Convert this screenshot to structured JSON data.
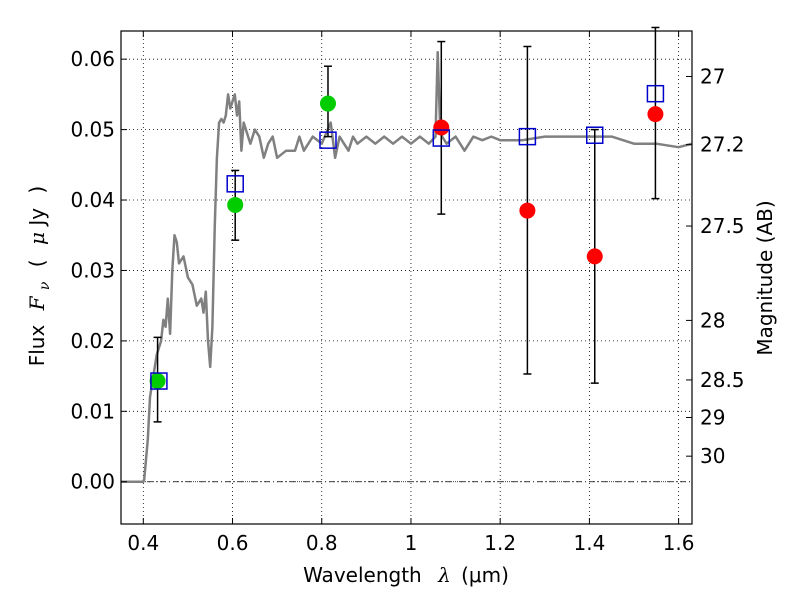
{
  "chart_data": {
    "type": "scatter",
    "xlabel": "Wavelength",
    "xlabel_symbol": "λ",
    "xlabel_unit": "(μm)",
    "ylabel": "Flux",
    "ylabel_symbol": "F",
    "ylabel_subscript": "ν",
    "ylabel_unit_open": "(",
    "ylabel_unit_mu": "μ",
    "ylabel_unit": "Jy",
    "ylabel_unit_close": ")",
    "y2label": "Magnitude (AB)",
    "xlim": [
      0.35,
      1.63
    ],
    "ylim": [
      -0.006,
      0.064
    ],
    "xticks": [
      {
        "value": 0.4,
        "label": "0.4"
      },
      {
        "value": 0.6,
        "label": "0.6"
      },
      {
        "value": 0.8,
        "label": "0.8"
      },
      {
        "value": 1.0,
        "label": "1"
      },
      {
        "value": 1.2,
        "label": "1.2"
      },
      {
        "value": 1.4,
        "label": "1.4"
      },
      {
        "value": 1.6,
        "label": "1.6"
      }
    ],
    "yticks": [
      {
        "value": 0.0,
        "label": "0.00"
      },
      {
        "value": 0.01,
        "label": "0.01"
      },
      {
        "value": 0.02,
        "label": "0.02"
      },
      {
        "value": 0.03,
        "label": "0.03"
      },
      {
        "value": 0.04,
        "label": "0.04"
      },
      {
        "value": 0.05,
        "label": "0.05"
      },
      {
        "value": 0.06,
        "label": "0.06"
      }
    ],
    "mag_ticks": [
      {
        "value": 27,
        "label": "27"
      },
      {
        "value": 27.2,
        "label": "27.2"
      },
      {
        "value": 27.5,
        "label": "27.5"
      },
      {
        "value": 28,
        "label": "28"
      },
      {
        "value": 28.5,
        "label": "28.5"
      },
      {
        "value": 29,
        "label": "29"
      },
      {
        "value": 30,
        "label": "30"
      }
    ],
    "grid": true,
    "zero_line": true,
    "model_spectrum": {
      "color": "#808080",
      "x": [
        0.35,
        0.4,
        0.402,
        0.41,
        0.415,
        0.42,
        0.43,
        0.44,
        0.445,
        0.45,
        0.455,
        0.46,
        0.465,
        0.47,
        0.475,
        0.48,
        0.49,
        0.5,
        0.51,
        0.52,
        0.53,
        0.535,
        0.54,
        0.545,
        0.55,
        0.555,
        0.56,
        0.565,
        0.57,
        0.575,
        0.58,
        0.585,
        0.59,
        0.595,
        0.6,
        0.605,
        0.61,
        0.615,
        0.62,
        0.625,
        0.63,
        0.64,
        0.65,
        0.66,
        0.67,
        0.68,
        0.69,
        0.7,
        0.72,
        0.74,
        0.75,
        0.76,
        0.78,
        0.8,
        0.82,
        0.83,
        0.84,
        0.85,
        0.86,
        0.87,
        0.88,
        0.9,
        0.92,
        0.94,
        0.96,
        0.98,
        1.0,
        1.02,
        1.04,
        1.055,
        1.06,
        1.065,
        1.07,
        1.08,
        1.1,
        1.12,
        1.14,
        1.16,
        1.18,
        1.2,
        1.25,
        1.3,
        1.35,
        1.4,
        1.45,
        1.5,
        1.55,
        1.6,
        1.63
      ],
      "y": [
        0.0,
        0.0,
        0.0003,
        0.006,
        0.012,
        0.014,
        0.018,
        0.02,
        0.023,
        0.022,
        0.026,
        0.021,
        0.03,
        0.035,
        0.034,
        0.031,
        0.032,
        0.029,
        0.028,
        0.025,
        0.026,
        0.024,
        0.027,
        0.02,
        0.0163,
        0.022,
        0.036,
        0.046,
        0.051,
        0.0515,
        0.051,
        0.052,
        0.055,
        0.053,
        0.054,
        0.055,
        0.052,
        0.054,
        0.047,
        0.051,
        0.05,
        0.048,
        0.05,
        0.049,
        0.046,
        0.048,
        0.049,
        0.046,
        0.047,
        0.047,
        0.049,
        0.047,
        0.049,
        0.048,
        0.051,
        0.046,
        0.049,
        0.048,
        0.047,
        0.049,
        0.048,
        0.049,
        0.048,
        0.049,
        0.048,
        0.049,
        0.048,
        0.049,
        0.048,
        0.049,
        0.061,
        0.051,
        0.049,
        0.048,
        0.049,
        0.047,
        0.049,
        0.0485,
        0.049,
        0.0485,
        0.0485,
        0.049,
        0.049,
        0.049,
        0.049,
        0.048,
        0.048,
        0.0475,
        0.048
      ]
    },
    "series": [
      {
        "name": "",
        "marker": "circle",
        "color": "#00cc00",
        "points": [
          {
            "x": 0.432,
            "y": 0.0143,
            "ylo": 0.0085,
            "yhi": 0.0205
          },
          {
            "x": 0.606,
            "y": 0.0393,
            "ylo": 0.0343,
            "yhi": 0.0442
          },
          {
            "x": 0.814,
            "y": 0.0537,
            "ylo": 0.049,
            "yhi": 0.059
          }
        ]
      },
      {
        "name": "",
        "marker": "circle",
        "color": "#ff0000",
        "points": [
          {
            "x": 1.068,
            "y": 0.0503,
            "ylo": 0.038,
            "yhi": 0.0625
          },
          {
            "x": 1.261,
            "y": 0.0385,
            "ylo": 0.0153,
            "yhi": 0.0618
          },
          {
            "x": 1.412,
            "y": 0.032,
            "ylo": 0.014,
            "yhi": 0.05
          },
          {
            "x": 1.548,
            "y": 0.0522,
            "ylo": 0.0402,
            "yhi": 0.0645
          }
        ]
      },
      {
        "name": "",
        "marker": "square",
        "color": "#0000cc",
        "points": [
          {
            "x": 0.435,
            "y": 0.0143
          },
          {
            "x": 0.606,
            "y": 0.0423
          },
          {
            "x": 0.814,
            "y": 0.0485
          },
          {
            "x": 1.068,
            "y": 0.0488
          },
          {
            "x": 1.261,
            "y": 0.049
          },
          {
            "x": 1.412,
            "y": 0.0492
          },
          {
            "x": 1.548,
            "y": 0.0551
          }
        ]
      }
    ]
  }
}
